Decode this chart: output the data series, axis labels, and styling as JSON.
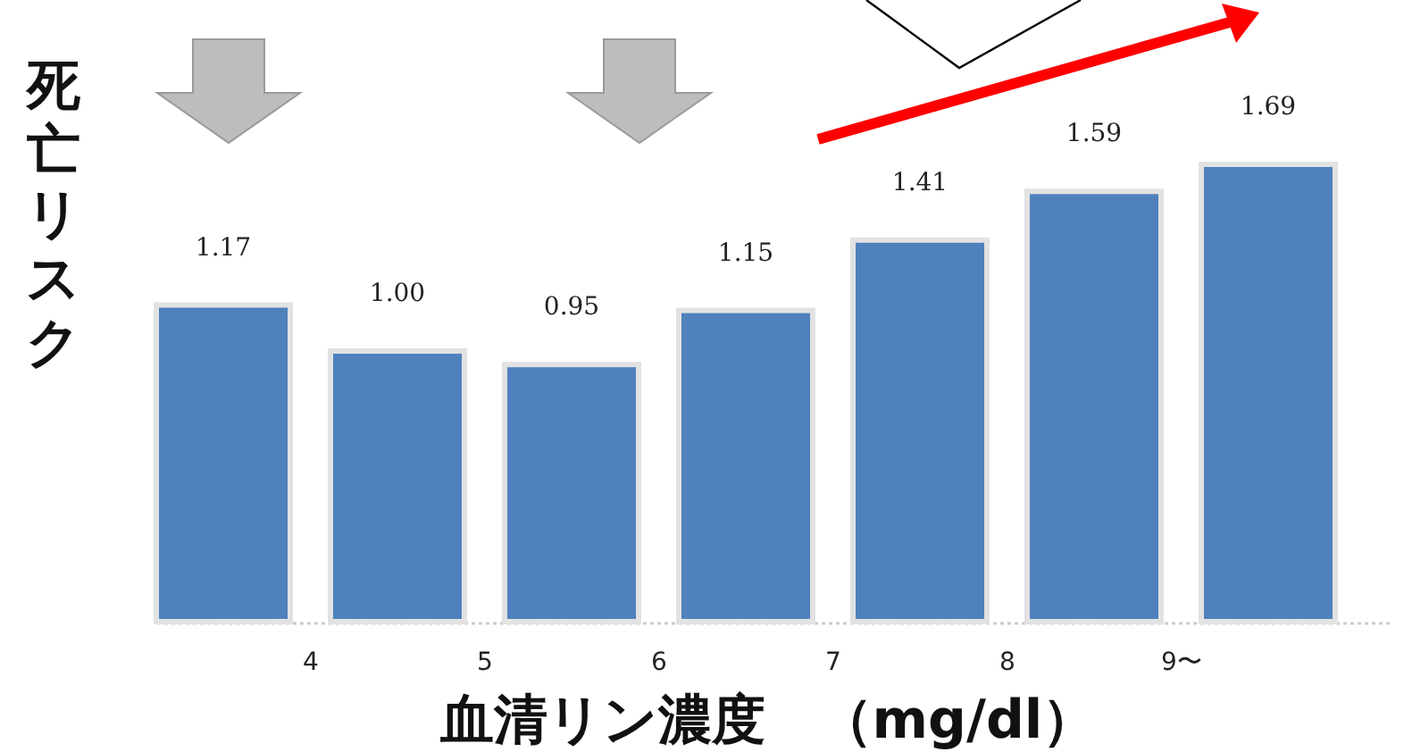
{
  "chart_data": {
    "type": "bar",
    "categories": [
      null,
      "4",
      "5",
      "6",
      "7",
      "8",
      "9〜"
    ],
    "values": [
      1.17,
      1.0,
      0.95,
      1.15,
      1.41,
      1.59,
      1.69
    ],
    "color": "#4f81bd",
    "value_labels": [
      "1.17",
      "1.00",
      "0.95",
      "1.15",
      "1.41",
      "1.59",
      "1.69"
    ],
    "xlabel": "血清リン濃度　（mg/dl）",
    "ylabel": "死亡リスク"
  }
}
